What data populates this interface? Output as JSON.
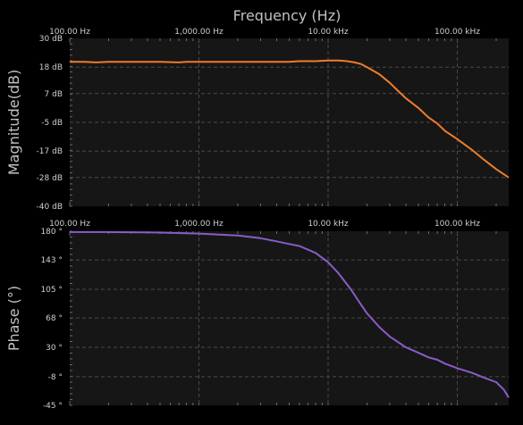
{
  "title": "Frequency (Hz)",
  "colors": {
    "background": "#000000",
    "plot_background": "#161616",
    "grid": "#4a4a4a",
    "magnitude_line": "#f07c2a",
    "phase_line": "#8a5cc8",
    "text": "#c8c8c8"
  },
  "chart_data": [
    {
      "type": "line",
      "x_scale": "log",
      "xlim": [
        100,
        250000
      ],
      "x_ticks": [
        100,
        1000,
        10000,
        100000
      ],
      "x_tick_labels": [
        "100.00 Hz",
        "1,000.00 Hz",
        "10.00 kHz",
        "100.00 kHz"
      ],
      "ylabel": "Magnitude(dB)",
      "ylim": [
        -40,
        30
      ],
      "y_ticks": [
        30,
        18,
        7,
        -5,
        -17,
        -28,
        -40
      ],
      "y_tick_labels": [
        "30 dB",
        "18 dB",
        "7 dB",
        "-5 dB",
        "-17 dB",
        "-28 dB",
        "-40 dB"
      ],
      "grid": true,
      "color": "#f07c2a",
      "series": [
        {
          "x": [
            100,
            130,
            160,
            200,
            300,
            500,
            700,
            800,
            1000,
            2000,
            3000,
            4000,
            5000,
            6000,
            8000,
            10000,
            12000,
            14000,
            16000,
            18000,
            20000,
            25000,
            30000,
            35000,
            40000,
            50000,
            60000,
            70000,
            80000,
            100000,
            130000,
            160000,
            200000,
            250000
          ],
          "y": [
            20.2,
            20.2,
            20.0,
            20.2,
            20.2,
            20.2,
            20.0,
            20.2,
            20.2,
            20.2,
            20.2,
            20.2,
            20.2,
            20.5,
            20.5,
            20.8,
            20.8,
            20.5,
            20.0,
            19.3,
            18.0,
            15.0,
            11.5,
            8.0,
            5.0,
            1.0,
            -3.0,
            -5.5,
            -8.5,
            -12.0,
            -16.5,
            -20.5,
            -24.5,
            -28.0
          ]
        }
      ]
    },
    {
      "type": "line",
      "x_scale": "log",
      "xlim": [
        100,
        250000
      ],
      "x_ticks": [
        100,
        1000,
        10000,
        100000
      ],
      "x_tick_labels": [
        "100.00 Hz",
        "1,000.00 Hz",
        "10.00 kHz",
        "100.00 kHz"
      ],
      "ylabel": "Phase (°)",
      "ylim": [
        -45,
        180
      ],
      "y_ticks": [
        180,
        143,
        105,
        68,
        30,
        -8,
        -45
      ],
      "y_tick_labels": [
        "180 °",
        "143 °",
        "105 °",
        "68 °",
        "30 °",
        "-8 °",
        "-45 °"
      ],
      "grid": true,
      "color": "#8a5cc8",
      "series": [
        {
          "x": [
            100,
            200,
            400,
            600,
            1000,
            1500,
            2000,
            3000,
            4000,
            5000,
            6000,
            8000,
            10000,
            12000,
            15000,
            18000,
            20000,
            25000,
            30000,
            40000,
            50000,
            60000,
            70000,
            80000,
            100000,
            130000,
            160000,
            200000,
            230000,
            250000
          ],
          "y": [
            179.0,
            179.0,
            178.5,
            178.0,
            177.0,
            175.5,
            174.5,
            171.0,
            167.0,
            163.5,
            161.0,
            152.0,
            140.0,
            126.0,
            105.0,
            85.0,
            74.0,
            56.0,
            44.0,
            30.0,
            23.0,
            17.0,
            14.0,
            9.0,
            3.0,
            -3.0,
            -9.0,
            -15.0,
            -25.0,
            -35.0
          ]
        }
      ]
    }
  ]
}
